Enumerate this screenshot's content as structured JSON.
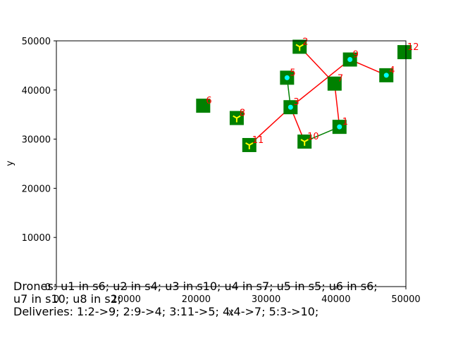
{
  "chart_data": {
    "type": "scatter",
    "xlabel": "x",
    "ylabel": "y",
    "xlim": [
      0,
      50000
    ],
    "ylim": [
      0,
      50000
    ],
    "xticks": [
      "0",
      "10000",
      "20000",
      "30000",
      "40000",
      "50000"
    ],
    "yticks": [
      "0",
      "10000",
      "20000",
      "30000",
      "40000",
      "50000"
    ],
    "grid": false,
    "nodes": [
      {
        "label": "1",
        "x": 40500,
        "y": 32500,
        "marker": "dot"
      },
      {
        "label": "2",
        "x": 34800,
        "y": 48800,
        "marker": "tri"
      },
      {
        "label": "3",
        "x": 33500,
        "y": 36500,
        "marker": "dot"
      },
      {
        "label": "4",
        "x": 47200,
        "y": 43000,
        "marker": "dot"
      },
      {
        "label": "5",
        "x": 33000,
        "y": 42500,
        "marker": "dot"
      },
      {
        "label": "6",
        "x": 21000,
        "y": 36800,
        "marker": "none"
      },
      {
        "label": "7",
        "x": 39800,
        "y": 41300,
        "marker": "none"
      },
      {
        "label": "8",
        "x": 25800,
        "y": 34300,
        "marker": "tri"
      },
      {
        "label": "9",
        "x": 42000,
        "y": 46200,
        "marker": "dot"
      },
      {
        "label": "10",
        "x": 35500,
        "y": 29500,
        "marker": "tri"
      },
      {
        "label": "11",
        "x": 27600,
        "y": 28800,
        "marker": "tri"
      },
      {
        "label": "12",
        "x": 49800,
        "y": 47700,
        "marker": "none"
      }
    ],
    "edges_red": [
      [
        "11",
        "3"
      ],
      [
        "3",
        "10"
      ],
      [
        "3",
        "9"
      ],
      [
        "9",
        "4"
      ],
      [
        "2",
        "7"
      ],
      [
        "7",
        "1"
      ]
    ],
    "edges_green": [
      [
        "5",
        "3"
      ],
      [
        "1",
        "10"
      ]
    ],
    "colors": {
      "station": "#008000",
      "red_route": "#ff0000",
      "green_route": "#008000",
      "drone_dot": "#00ffff",
      "drone_tri": "#ffff00",
      "label": "#ff0000"
    }
  },
  "caption": {
    "line1": "Drones: u1 in s6; u2 in s4; u3 in s10; u4 in s7; u5 in s5; u6 in s6;",
    "line2": "u7 in s10; u8 in s2;",
    "line3": "Deliveries: 1:2->9; 2:9->4; 3:11->5; 4:4->7; 5:3->10;"
  }
}
